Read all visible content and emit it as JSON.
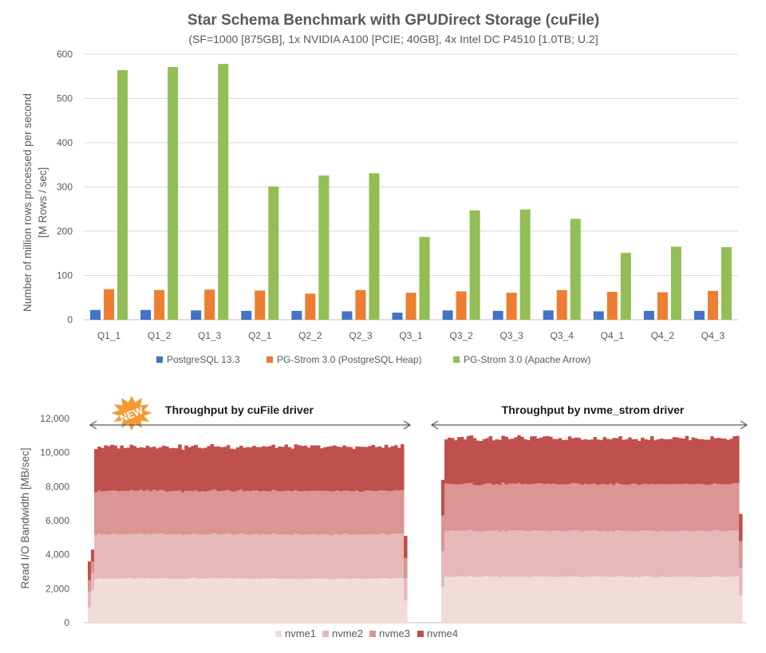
{
  "chart_data": [
    {
      "type": "bar",
      "title": "Star Schema Benchmark with GPUDirect Storage (cuFile)",
      "subtitle": "(SF=1000 [875GB], 1x NVIDIA A100 [PCIE; 40GB], 4x Intel DC P4510 [1.0TB; U.2]",
      "ylabel_lines": [
        "Number of million rows processed per second",
        "[M Rows / sec]"
      ],
      "xlabel": "",
      "ylim": [
        0,
        600
      ],
      "yticks": [
        0,
        100,
        200,
        300,
        400,
        500,
        600
      ],
      "ytick_labels": [
        "0",
        "100",
        "200",
        "300",
        "400",
        "500",
        "600"
      ],
      "grid": true,
      "legend_position": "bottom",
      "categories": [
        "Q1_1",
        "Q1_2",
        "Q1_3",
        "Q2_1",
        "Q2_2",
        "Q2_3",
        "Q3_1",
        "Q3_2",
        "Q3_3",
        "Q3_4",
        "Q4_1",
        "Q4_2",
        "Q4_3"
      ],
      "series": [
        {
          "name": "PostgreSQL 13.3",
          "color": "#4472c4",
          "values": [
            22,
            22,
            21,
            20,
            20,
            19,
            16,
            21,
            20,
            21,
            19,
            20,
            20
          ]
        },
        {
          "name": "PG-Strom 3.0 (PostgreSQL Heap)",
          "color": "#ed7d31",
          "values": [
            69,
            67,
            68,
            66,
            59,
            67,
            61,
            64,
            61,
            67,
            63,
            62,
            65
          ]
        },
        {
          "name": "PG-Strom 3.0 (Apache Arrow)",
          "color": "#92be55",
          "values": [
            564,
            571,
            578,
            301,
            326,
            331,
            187,
            247,
            249,
            228,
            151,
            165,
            164
          ]
        }
      ]
    },
    {
      "type": "area",
      "stacked": true,
      "ylabel": "Read I/O Bandwidth [MB/sec]",
      "xlabel": "",
      "ylim": [
        0,
        12000
      ],
      "yticks": [
        0,
        2000,
        4000,
        6000,
        8000,
        10000,
        12000
      ],
      "ytick_labels": [
        "0",
        "2,000",
        "4,000",
        "6,000",
        "8,000",
        "10,000",
        "12,000"
      ],
      "grid": false,
      "legend_position": "bottom",
      "annotations": {
        "badge": "NEW",
        "left_label": "Throughput by cuFile driver",
        "right_label": "Throughput by nvme_strom driver"
      },
      "series": [
        {
          "name": "nvme1",
          "color": "#f2dcdb"
        },
        {
          "name": "nvme2",
          "color": "#e6b9b8"
        },
        {
          "name": "nvme3",
          "color": "#da9694"
        },
        {
          "name": "nvme4",
          "color": "#c0504d"
        }
      ],
      "segments": [
        {
          "label": "cuFile",
          "ramp_start": [
            {
              "nvme1": 900,
              "nvme2": 900,
              "nvme3": 700,
              "nvme4": 1100
            },
            {
              "nvme1": 1900,
              "nvme2": 1000,
              "nvme3": 700,
              "nvme4": 700
            }
          ],
          "plateau": {
            "count": 96,
            "nvme1": 2600,
            "nvme2": 2600,
            "nvme3": 2550,
            "nvme4": 2600
          },
          "ramp_end": [
            {
              "nvme1": 1300,
              "nvme2": 1300,
              "nvme3": 1200,
              "nvme4": 1300
            }
          ]
        },
        {
          "label": "nvme_strom",
          "ramp_start": [
            {
              "nvme1": 2100,
              "nvme2": 2100,
              "nvme3": 2100,
              "nvme4": 2100
            }
          ],
          "plateau": {
            "count": 93,
            "nvme1": 2700,
            "nvme2": 2700,
            "nvme3": 2750,
            "nvme4": 2700
          },
          "ramp_end": [
            {
              "nvme1": 1600,
              "nvme2": 1600,
              "nvme3": 1600,
              "nvme4": 1600
            }
          ]
        }
      ]
    }
  ]
}
